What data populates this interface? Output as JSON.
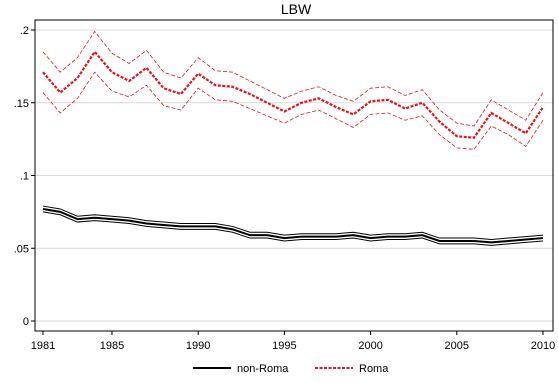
{
  "chart_data": {
    "type": "line",
    "title": "LBW",
    "x": [
      1981,
      1982,
      1983,
      1984,
      1985,
      1986,
      1987,
      1988,
      1989,
      1990,
      1991,
      1992,
      1993,
      1994,
      1995,
      1996,
      1997,
      1998,
      1999,
      2000,
      2001,
      2002,
      2003,
      2004,
      2005,
      2006,
      2007,
      2008,
      2009,
      2010
    ],
    "xlim": [
      1981,
      2010
    ],
    "ylim": [
      0,
      0.2
    ],
    "xticks": [
      1981,
      1985,
      1990,
      1995,
      2000,
      2005,
      2010
    ],
    "xtick_labels": [
      "1981",
      "1985",
      "1990",
      "1995",
      "2000",
      "2005",
      "2010"
    ],
    "yticks": [
      0,
      0.05,
      0.1,
      0.15,
      0.2
    ],
    "ytick_labels": [
      "0",
      ".05",
      ".1",
      ".15",
      ".2"
    ],
    "grid": "horizontal",
    "legend_position": "bottom",
    "series": [
      {
        "name": "non-Roma",
        "color": "#000000",
        "style": "solid",
        "values": [
          0.077,
          0.075,
          0.07,
          0.071,
          0.07,
          0.069,
          0.067,
          0.066,
          0.065,
          0.065,
          0.065,
          0.063,
          0.059,
          0.059,
          0.057,
          0.058,
          0.058,
          0.058,
          0.059,
          0.057,
          0.058,
          0.058,
          0.059,
          0.055,
          0.055,
          0.055,
          0.054,
          0.055,
          0.056,
          0.057
        ],
        "lower": [
          0.075,
          0.073,
          0.068,
          0.069,
          0.068,
          0.067,
          0.065,
          0.064,
          0.063,
          0.063,
          0.063,
          0.061,
          0.057,
          0.057,
          0.055,
          0.056,
          0.056,
          0.056,
          0.057,
          0.055,
          0.056,
          0.056,
          0.057,
          0.053,
          0.053,
          0.053,
          0.052,
          0.053,
          0.054,
          0.055
        ],
        "upper": [
          0.079,
          0.077,
          0.072,
          0.073,
          0.072,
          0.071,
          0.069,
          0.068,
          0.067,
          0.067,
          0.067,
          0.065,
          0.061,
          0.061,
          0.059,
          0.06,
          0.06,
          0.06,
          0.061,
          0.059,
          0.06,
          0.06,
          0.061,
          0.057,
          0.057,
          0.057,
          0.056,
          0.057,
          0.058,
          0.059
        ]
      },
      {
        "name": "Roma",
        "color": "#e8121a",
        "style": "dashed",
        "values": [
          0.171,
          0.157,
          0.167,
          0.185,
          0.171,
          0.165,
          0.174,
          0.16,
          0.156,
          0.17,
          0.162,
          0.161,
          0.156,
          0.15,
          0.144,
          0.15,
          0.153,
          0.147,
          0.142,
          0.151,
          0.152,
          0.146,
          0.15,
          0.137,
          0.127,
          0.126,
          0.143,
          0.136,
          0.129,
          0.147
        ],
        "lower": [
          0.157,
          0.143,
          0.153,
          0.171,
          0.158,
          0.154,
          0.162,
          0.148,
          0.145,
          0.16,
          0.152,
          0.151,
          0.146,
          0.141,
          0.136,
          0.142,
          0.145,
          0.139,
          0.133,
          0.142,
          0.143,
          0.138,
          0.141,
          0.128,
          0.119,
          0.118,
          0.134,
          0.128,
          0.12,
          0.138
        ],
        "upper": [
          0.185,
          0.171,
          0.181,
          0.199,
          0.184,
          0.177,
          0.186,
          0.171,
          0.167,
          0.181,
          0.172,
          0.171,
          0.165,
          0.159,
          0.153,
          0.158,
          0.161,
          0.155,
          0.151,
          0.16,
          0.161,
          0.155,
          0.159,
          0.145,
          0.136,
          0.134,
          0.152,
          0.145,
          0.138,
          0.157
        ]
      }
    ]
  }
}
